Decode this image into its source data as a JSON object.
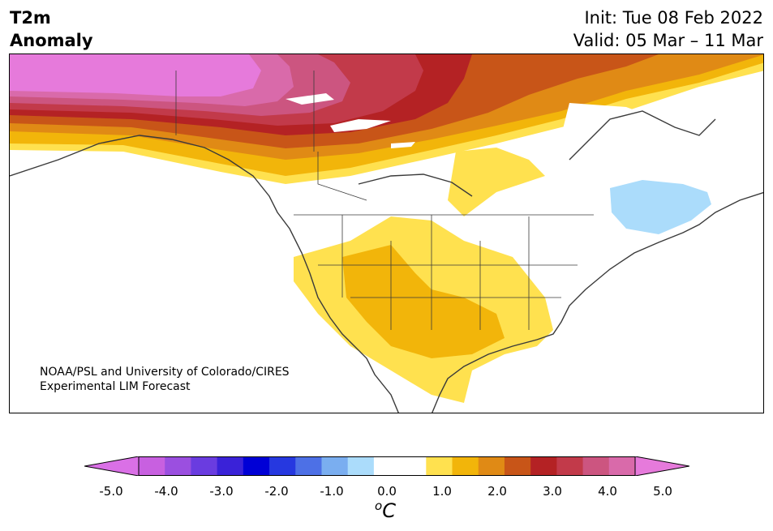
{
  "header": {
    "title_line1": "T2m",
    "title_line2": "Anomaly",
    "init": "Init: Tue 08 Feb 2022",
    "valid": "Valid: 05 Mar – 11 Mar"
  },
  "map": {
    "region": "North America",
    "credit_line1": "NOAA/PSL and University of Colorado/CIRES",
    "credit_line2": "Experimental LIM Forecast"
  },
  "colorbar": {
    "unit_base": "C",
    "unit_sup": "o",
    "ticks": [
      "-5.0",
      "-4.0",
      "-3.0",
      "-2.0",
      "-1.0",
      "0.0",
      "1.0",
      "2.0",
      "3.0",
      "4.0",
      "5.0"
    ],
    "colors": {
      "below_min": "#da70e6",
      "levels": [
        "#c860e0",
        "#9b4fe0",
        "#6a3ce0",
        "#3a22d8",
        "#0000d6",
        "#2638e0",
        "#4d70e6",
        "#7aaef0",
        "#abdcfb",
        "#ffffff",
        "#ffffff",
        "#ffe14f",
        "#f2b50a",
        "#e08a15",
        "#c85518",
        "#b42224",
        "#c23a4a",
        "#cc5580",
        "#d96aaa"
      ],
      "above_max": "#e67adb"
    }
  }
}
